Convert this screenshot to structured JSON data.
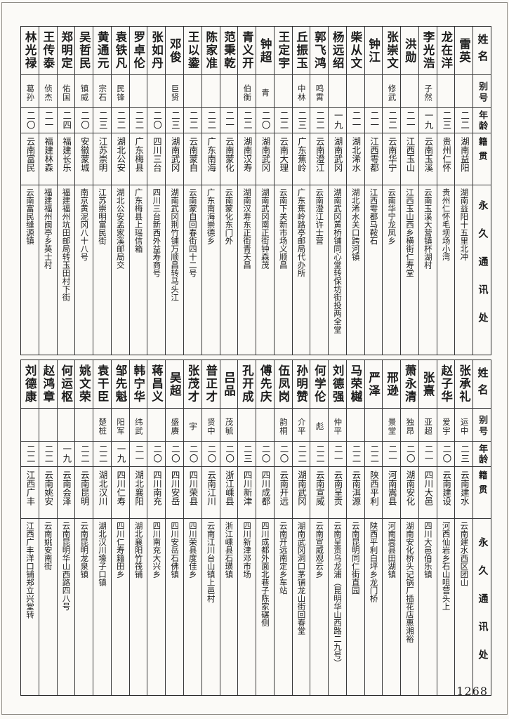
{
  "page": {
    "number": "1268"
  },
  "header": {
    "name": "姓名",
    "alias": "别号",
    "age": "年龄",
    "native": "籍贯",
    "address": "永久通讯处"
  },
  "top_table": {
    "people": [
      {
        "name": "雷英",
        "alias": "",
        "age": "二二",
        "native": "湖南益阳",
        "address": "湖南益阳十五里北冲"
      },
      {
        "name": "龙在洋",
        "alias": "",
        "age": "二三",
        "native": "贵州仁怀",
        "address": "贵州仁怀毛坝场小湾"
      },
      {
        "name": "李光浩",
        "alias": "子然",
        "age": "一九",
        "native": "云南玉溪",
        "address": "云南玉溪大营镇杯湖村"
      },
      {
        "name": "洪勋",
        "alias": "",
        "age": "二一",
        "native": "江西玉山",
        "address": "江西玉山西乡横街仁寿堂"
      },
      {
        "name": "张崇文",
        "alias": "修武",
        "age": "二二",
        "native": "云南华宁",
        "address": "云南华宁龙凤乡"
      },
      {
        "name": "钟江",
        "alias": "",
        "age": "二一",
        "native": "江西雩都",
        "address": "江西雩都马鞍石"
      },
      {
        "name": "柴从文",
        "alias": "",
        "age": "二一",
        "native": "湖北浠水",
        "address": "湖北浠水关口跨河镇"
      },
      {
        "name": "杨远绍",
        "alias": "",
        "age": "一九",
        "native": "湖南武冈",
        "address": "湖南武冈黄桥铺同心堂转保坊街投两全堂"
      },
      {
        "name": "郭飞鸿",
        "alias": "鸣霄",
        "age": "二二",
        "native": "云南澄江",
        "address": "云南澄江许士营"
      },
      {
        "name": "丘振玉",
        "alias": "中林",
        "age": "二三",
        "native": "广东蕉岭",
        "address": "广东蕉岭路亭邮局代办所"
      },
      {
        "name": "王定宇",
        "alias": "",
        "age": "二二",
        "native": "云南大理",
        "address": "云南下关新市场义顺昌"
      },
      {
        "name": "钟超",
        "alias": "青",
        "age": "二〇",
        "native": "湖南武冈",
        "address": "湖南武冈南正街钟森茂"
      },
      {
        "name": "青义开",
        "alias": "伯衡",
        "age": "二二",
        "native": "湖南汉寿",
        "address": "湖南汉寿东正街青天昌"
      },
      {
        "name": "范秉乾",
        "alias": "",
        "age": "二一",
        "native": "云南蒙化",
        "address": "云南蒙化东门外"
      },
      {
        "name": "陈家准",
        "alias": "",
        "age": "二二",
        "native": "广东南海",
        "address": "广东南海崇德乡"
      },
      {
        "name": "王以鍌",
        "alias": "",
        "age": "二二",
        "native": "云南蒙自",
        "address": "云南蒙自回春街四十二号"
      },
      {
        "name": "邓俊",
        "alias": "巨贤",
        "age": "二三",
        "native": "湖南武冈",
        "address": "湖南武冈荆竹铺万顺昌转马头江"
      },
      {
        "name": "张如丹",
        "alias": "",
        "age": "二〇",
        "native": "四川三台",
        "address": "四川三台新西外益寿商号"
      },
      {
        "name": "罗卓伦",
        "alias": "",
        "age": "二二",
        "native": "广东梅县",
        "address": "广东梅县上瑶信箱"
      },
      {
        "name": "袁铁凡",
        "alias": "民锋",
        "age": "二二",
        "native": "湖北公安",
        "address": "湖北公安孟家溪邮局交"
      },
      {
        "name": "黄通元",
        "alias": "宗石",
        "age": "二三",
        "native": "江苏崇明",
        "address": "江苏崇明富民街"
      },
      {
        "name": "吴哲民",
        "alias": "镇威",
        "age": "二〇",
        "native": "安徽蒙城",
        "address": "南京黄泥冈八十八号"
      },
      {
        "name": "郑明定",
        "alias": "佑国",
        "age": "二四",
        "native": "福建长乐",
        "address": "福建福州坑田邮局转玉田村下街"
      },
      {
        "name": "王传泰",
        "alias": "侦杰",
        "age": "二一",
        "native": "福建林森",
        "address": "福建福州闽亭乡英士村"
      },
      {
        "name": "林光禄",
        "alias": "葛孙",
        "age": "二〇",
        "native": "云南富民",
        "address": "云南富民缝源镇"
      }
    ]
  },
  "bottom_table": {
    "people": [
      {
        "name": "张承礼",
        "alias": "运中",
        "age": "二三",
        "native": "云南建水",
        "address": "云南建水西区团山"
      },
      {
        "name": "赵子华",
        "alias": "爱宇",
        "age": "二〇",
        "native": "云南建设",
        "address": "河西仙岩乡石山咀营头上"
      },
      {
        "name": "张熹",
        "alias": "亚超",
        "age": "二一",
        "native": "四川大邑",
        "address": "四川大邑伯乐镇"
      },
      {
        "name": "萧永清",
        "alias": "独昂",
        "age": "二〇",
        "native": "湖南安化",
        "address": "湖南安化桥头记锅厂插花店惠湘裕"
      },
      {
        "name": "邢逊",
        "alias": "景堂",
        "age": "二一",
        "native": "河南嵩县",
        "address": "河南嵩县田湖镇"
      },
      {
        "name": "严泽",
        "alias": "",
        "age": "二二",
        "native": "陕西平利",
        "address": "陕西平利白坪乡龙门桥"
      },
      {
        "name": "马荣樾",
        "alias": "",
        "age": "二二",
        "native": "云南洱源",
        "address": "云南昆明同仁街直园"
      },
      {
        "name": "刘德强",
        "alias": "仲平",
        "age": "二一",
        "native": "云南呈贡",
        "address": "云南呈贡乌龙浦（昆明华山西路二九号）"
      },
      {
        "name": "何学伦",
        "alias": "彪",
        "age": "二二",
        "native": "云南宣威",
        "address": "云南宣威观云乡"
      },
      {
        "name": "孙明赞",
        "alias": "介平",
        "age": "二二",
        "native": "湖南武冈",
        "address": "湖南武冈洞口茅铺龙山街回春堂"
      },
      {
        "name": "伍凤岗",
        "alias": "韵桐",
        "age": "二〇",
        "native": "云南开远",
        "address": "云南开远南定乡车站"
      },
      {
        "name": "傅先庆",
        "alias": "",
        "age": "二〇",
        "native": "四川成都",
        "address": "四川成都外面北巷子陈家碾侧"
      },
      {
        "name": "孔开成",
        "alias": "",
        "age": "二三",
        "native": "四川新津",
        "address": "四川新津邓市场"
      },
      {
        "name": "吕品",
        "alias": "茂毓",
        "age": "二〇",
        "native": "浙江嵊县",
        "address": "浙江嵊县石璜镇"
      },
      {
        "name": "普正才",
        "alias": "贤中",
        "age": "二〇",
        "native": "云南江川",
        "address": "云南江川台山镇上邑村"
      },
      {
        "name": "张茂才",
        "alias": "宇",
        "age": "二〇",
        "native": "四川荣县",
        "address": "四川荣县度佳乡"
      },
      {
        "name": "吴超",
        "alias": "盛赓",
        "age": "二〇",
        "native": "四川安岳",
        "address": "四川安岳石佛镇"
      },
      {
        "name": "蒋昌义",
        "alias": "",
        "age": "二〇",
        "native": "四川南充",
        "address": "四川南充大兴乡"
      },
      {
        "name": "韩宁华",
        "alias": "纬武",
        "age": "二一",
        "native": "湖北襄阳",
        "address": "湖北襄阳竹筏铺"
      },
      {
        "name": "邹先魁",
        "alias": "阳军",
        "age": "一九",
        "native": "四川仁寿",
        "address": "四川仁寿籍田乡"
      },
      {
        "name": "袁干臣",
        "alias": "楚桩",
        "age": "二二",
        "native": "湖北汉川",
        "address": "湖北汉川壕子口镇"
      },
      {
        "name": "姚文荣",
        "alias": "",
        "age": "二二",
        "native": "云南昆明",
        "address": "云南昆明龙泉镇"
      },
      {
        "name": "何运枢",
        "alias": "",
        "age": "一九",
        "native": "云南会泽",
        "address": "云南昆明华山西路四八号"
      },
      {
        "name": "赵鸿章",
        "alias": "",
        "age": "二二",
        "native": "云南姚安",
        "address": "云南姚安南街"
      },
      {
        "name": "刘德康",
        "alias": "",
        "age": "二二",
        "native": "江西广丰",
        "address": "江西广丰洋口铺郑立兴堂转"
      }
    ]
  }
}
